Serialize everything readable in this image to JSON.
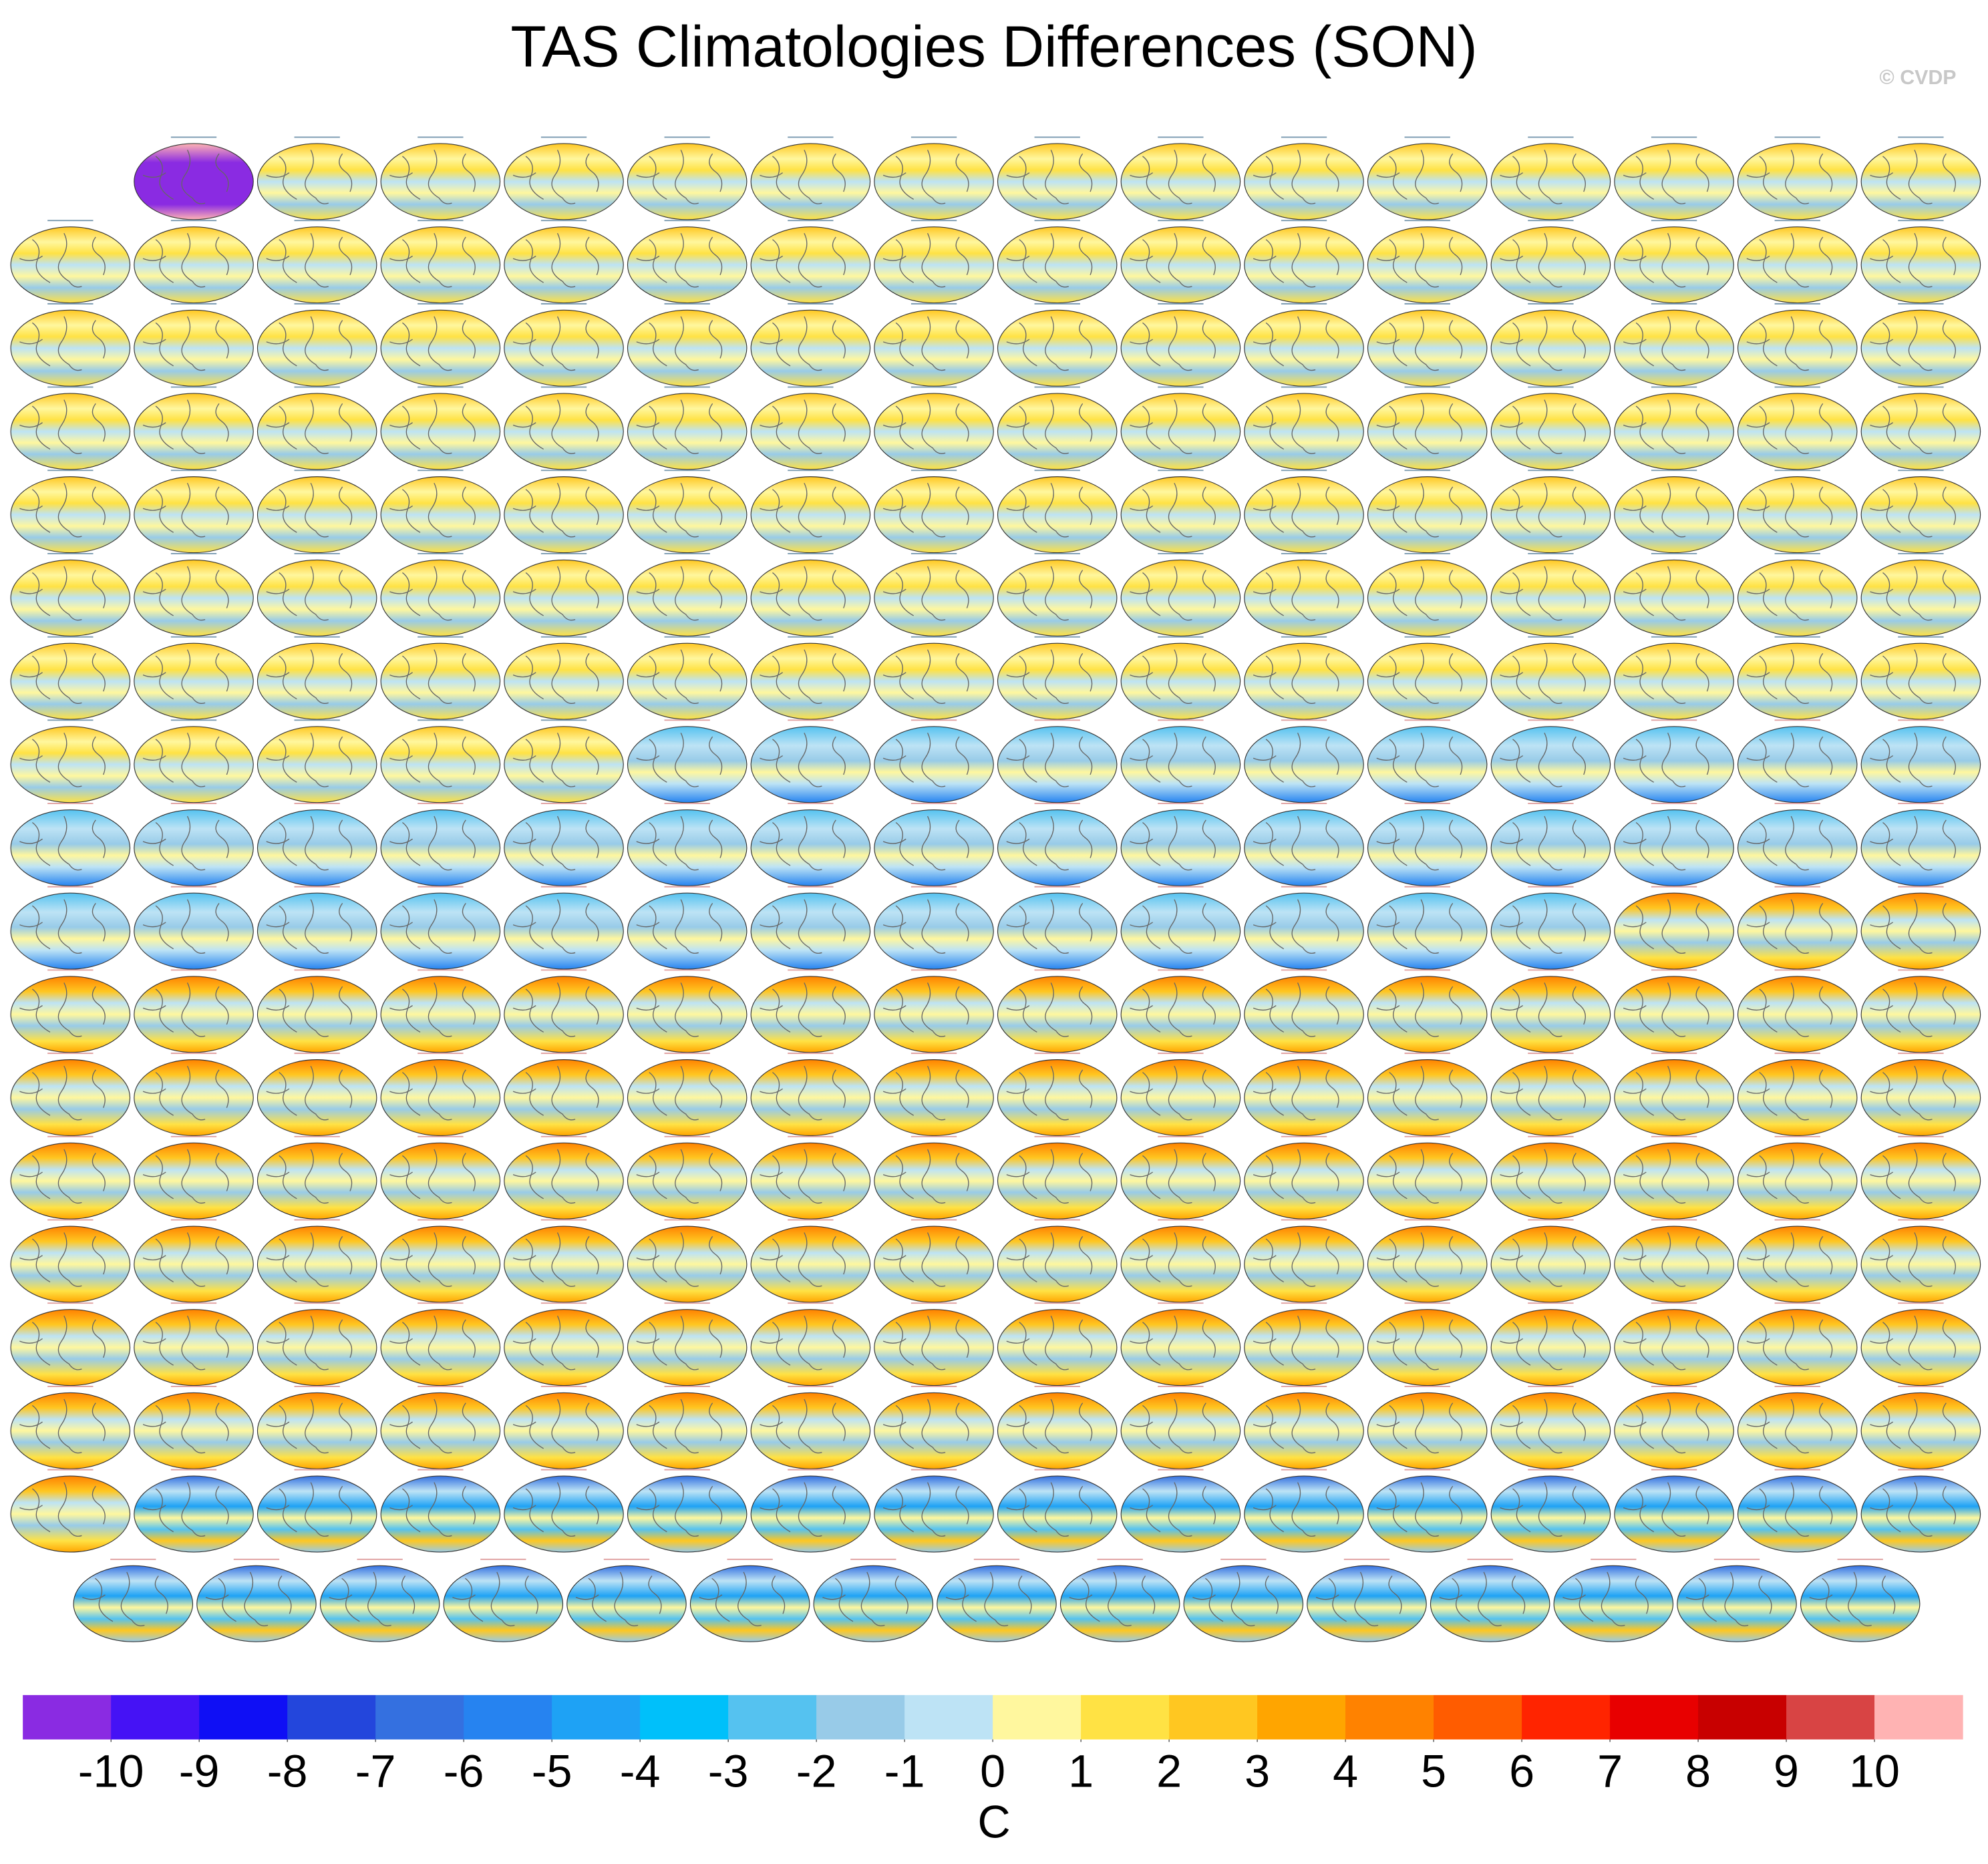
{
  "chart_data": {
    "type": "map-panels",
    "title": "TAS Climatologies Differences (SON)",
    "annotation": "© CVDP",
    "colorbar": {
      "colors": [
        "#8a2be2",
        "#4512f5",
        "#0f0ff5",
        "#2346dc",
        "#3470e0",
        "#2683f0",
        "#1ea2f5",
        "#00c0fa",
        "#55c2f0",
        "#98cbe8",
        "#bde3f5",
        "#fff79e",
        "#ffe244",
        "#ffc721",
        "#ffa500",
        "#ff8200",
        "#ff5c00",
        "#ff2400",
        "#e80000",
        "#c80000",
        "#d84444",
        "#ffb3b3"
      ],
      "ticks": [
        -10,
        -9,
        -8,
        -7,
        -6,
        -5,
        -4,
        -3,
        -2,
        -1,
        0,
        1,
        2,
        3,
        4,
        5,
        6,
        7,
        8,
        9,
        10
      ],
      "label": "C"
    }
  }
}
